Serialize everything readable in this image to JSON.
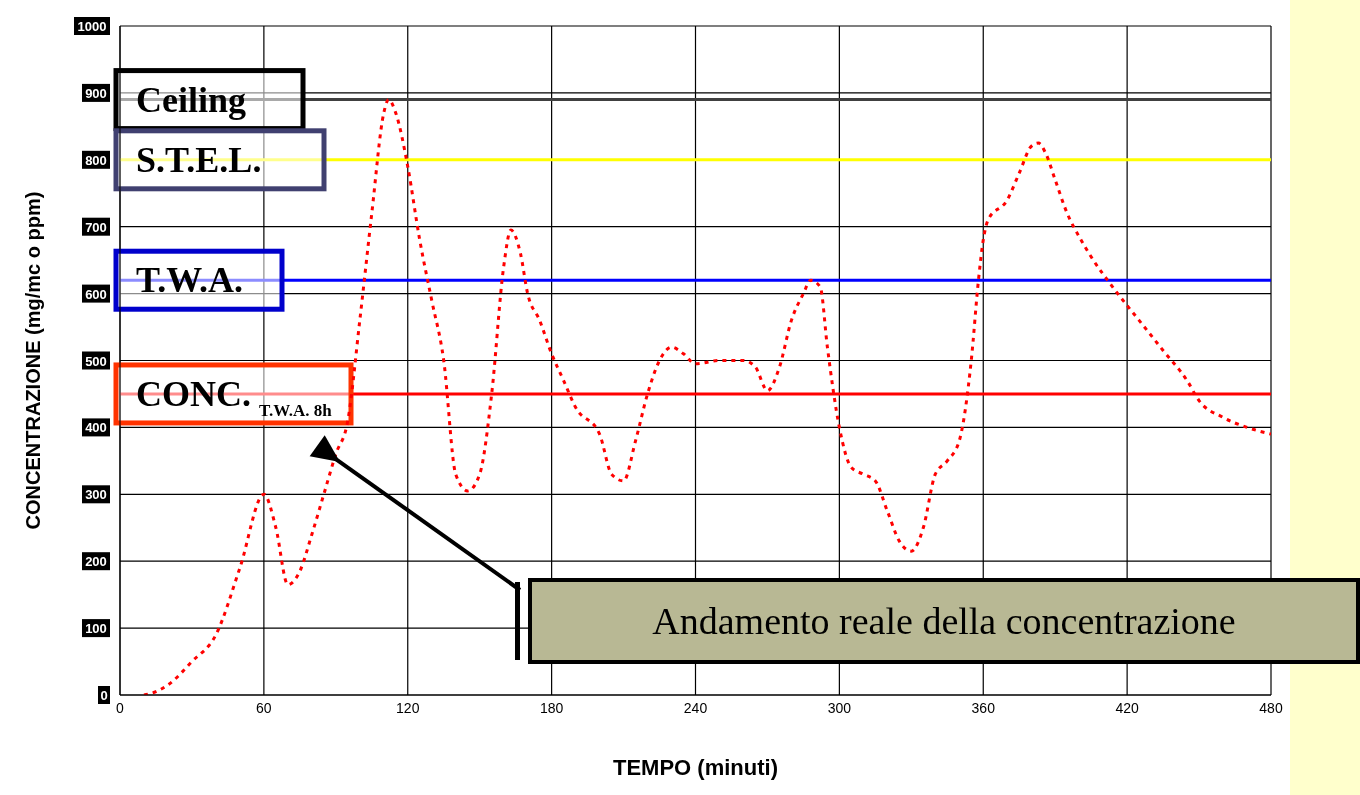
{
  "chart_data": {
    "type": "line",
    "xlabel": "TEMPO (minuti)",
    "ylabel": "CONCENTRAZIONE (mg/mc o ppm)",
    "xlim": [
      0,
      480
    ],
    "xticks": [
      0,
      60,
      120,
      180,
      240,
      300,
      360,
      420,
      480
    ],
    "ylim": [
      0,
      1000
    ],
    "yticks": [
      0,
      100,
      200,
      300,
      400,
      500,
      600,
      700,
      800,
      900,
      1000
    ],
    "grid": true,
    "legend": false,
    "marker": "none",
    "line_style": "dotted",
    "series": [
      {
        "color": "#ff0000",
        "x": [
          10,
          15,
          20,
          30,
          40,
          50,
          60,
          65,
          70,
          75,
          80,
          85,
          90,
          95,
          100,
          105,
          110,
          112,
          115,
          120,
          125,
          130,
          135,
          140,
          145,
          150,
          155,
          160,
          163,
          167,
          170,
          175,
          180,
          185,
          190,
          200,
          205,
          210,
          215,
          220,
          225,
          230,
          235,
          240,
          250,
          260,
          265,
          270,
          275,
          280,
          285,
          288,
          292,
          295,
          300,
          305,
          310,
          315,
          320,
          325,
          330,
          335,
          340,
          345,
          350,
          355,
          358,
          360,
          362,
          370,
          375,
          380,
          383,
          386,
          390,
          395,
          400,
          405,
          415,
          425,
          435,
          445,
          450,
          460,
          470,
          480
        ],
        "values": [
          0,
          5,
          15,
          50,
          90,
          190,
          300,
          250,
          165,
          185,
          240,
          300,
          360,
          410,
          560,
          720,
          870,
          890,
          870,
          790,
          680,
          590,
          500,
          330,
          305,
          330,
          450,
          640,
          695,
          660,
          600,
          560,
          510,
          470,
          430,
          390,
          330,
          320,
          380,
          450,
          500,
          520,
          510,
          495,
          500,
          500,
          490,
          455,
          490,
          560,
          600,
          620,
          610,
          520,
          400,
          340,
          330,
          320,
          275,
          230,
          215,
          250,
          330,
          350,
          380,
          500,
          620,
          680,
          710,
          740,
          780,
          820,
          825,
          810,
          770,
          720,
          685,
          655,
          605,
          560,
          515,
          470,
          440,
          415,
          400,
          390
        ]
      }
    ],
    "ref_lines": [
      {
        "axis": "y",
        "value": 890,
        "label": "Ceiling",
        "color": "#404040"
      },
      {
        "axis": "y",
        "value": 800,
        "label": "S.T.E.L.",
        "color": "#ffff00"
      },
      {
        "axis": "y",
        "value": 620,
        "label": "T.W.A.",
        "color": "#0000ff"
      },
      {
        "axis": "y",
        "value": 450,
        "label": "CONC.$_{T.W.A. 8h}$",
        "color": "#ff0000"
      }
    ],
    "annotations": [
      "Andamento reale della concentrazione"
    ]
  }
}
